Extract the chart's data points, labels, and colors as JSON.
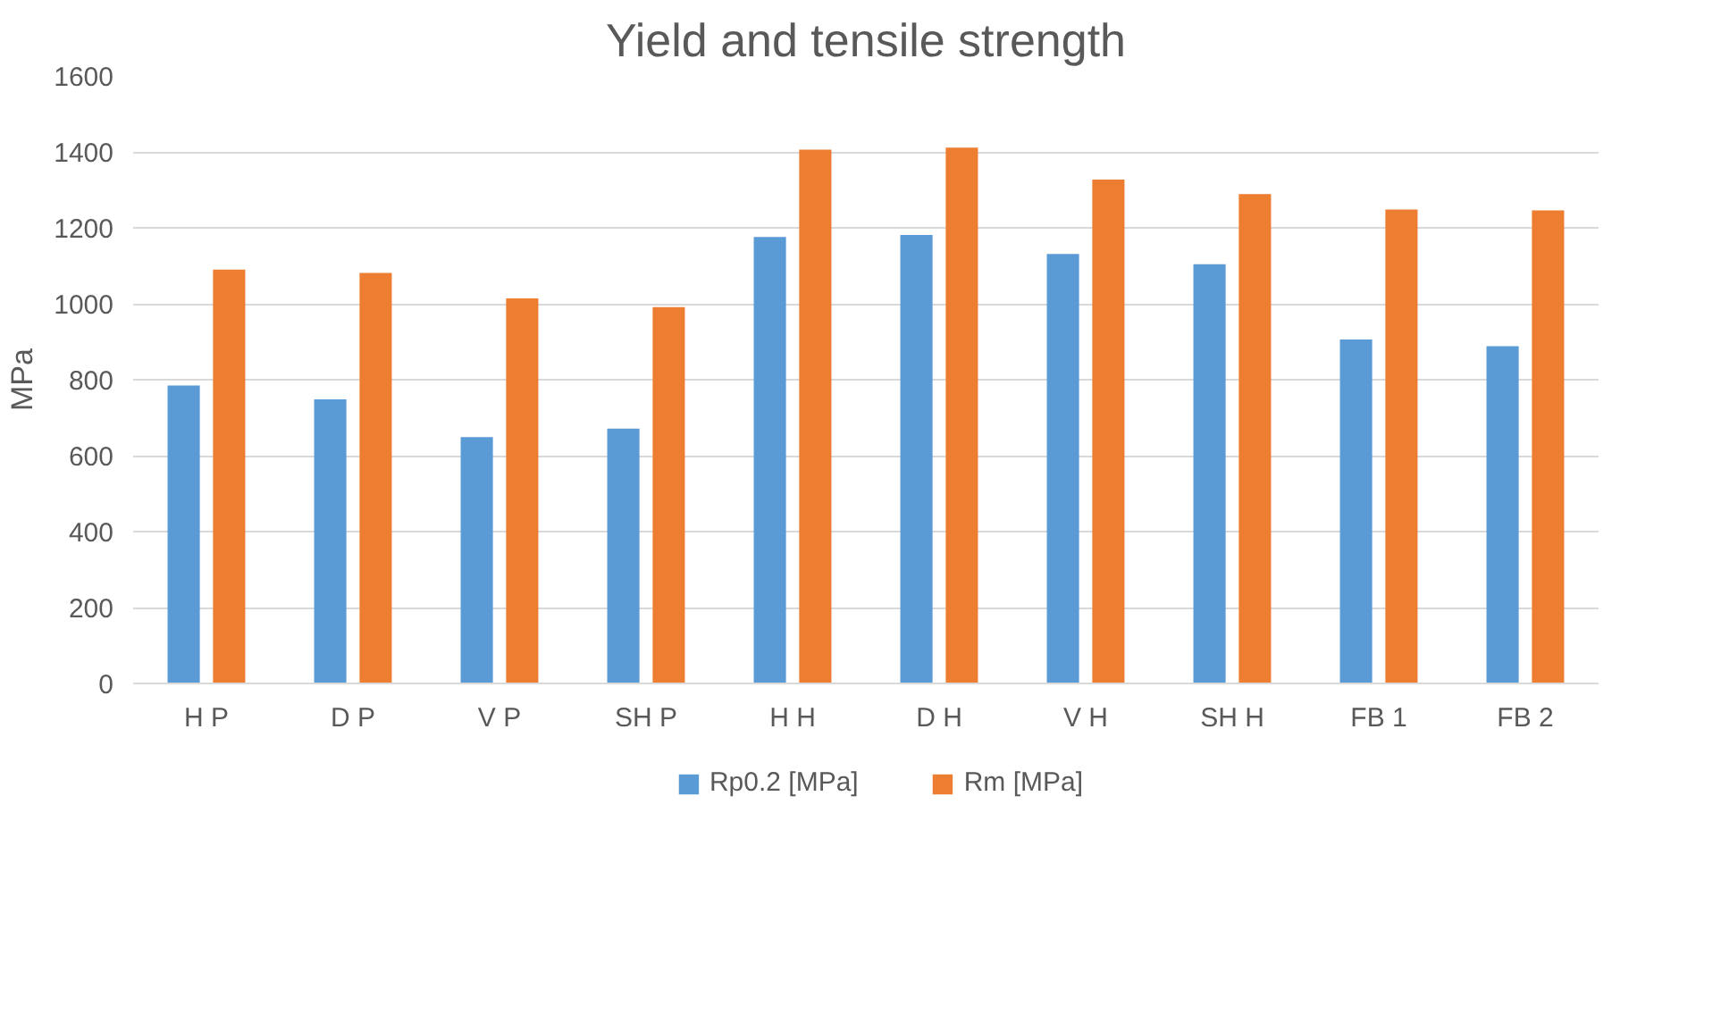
{
  "chart_data": {
    "type": "bar",
    "title": "Yield and tensile strength",
    "ylabel": "MPa",
    "categories": [
      "H P",
      "D P",
      "V P",
      "SH P",
      "H H",
      "D H",
      "V H",
      "SH H",
      "FB 1",
      "FB 2"
    ],
    "series": [
      {
        "name": "Rp0.2 [MPa]",
        "color": "#5b9bd5",
        "values": [
          785,
          748,
          649,
          671,
          1176,
          1181,
          1131,
          1104,
          906,
          888
        ]
      },
      {
        "name": "Rm [MPa]",
        "color": "#ed7d31",
        "values": [
          1090,
          1081,
          1014,
          991,
          1406,
          1411,
          1327,
          1289,
          1248,
          1246
        ]
      }
    ],
    "ylim": [
      0,
      1600
    ],
    "yticks": [
      0,
      200,
      400,
      600,
      800,
      1000,
      1200,
      1400,
      1600
    ],
    "grid": "y",
    "legend": "bottom"
  }
}
